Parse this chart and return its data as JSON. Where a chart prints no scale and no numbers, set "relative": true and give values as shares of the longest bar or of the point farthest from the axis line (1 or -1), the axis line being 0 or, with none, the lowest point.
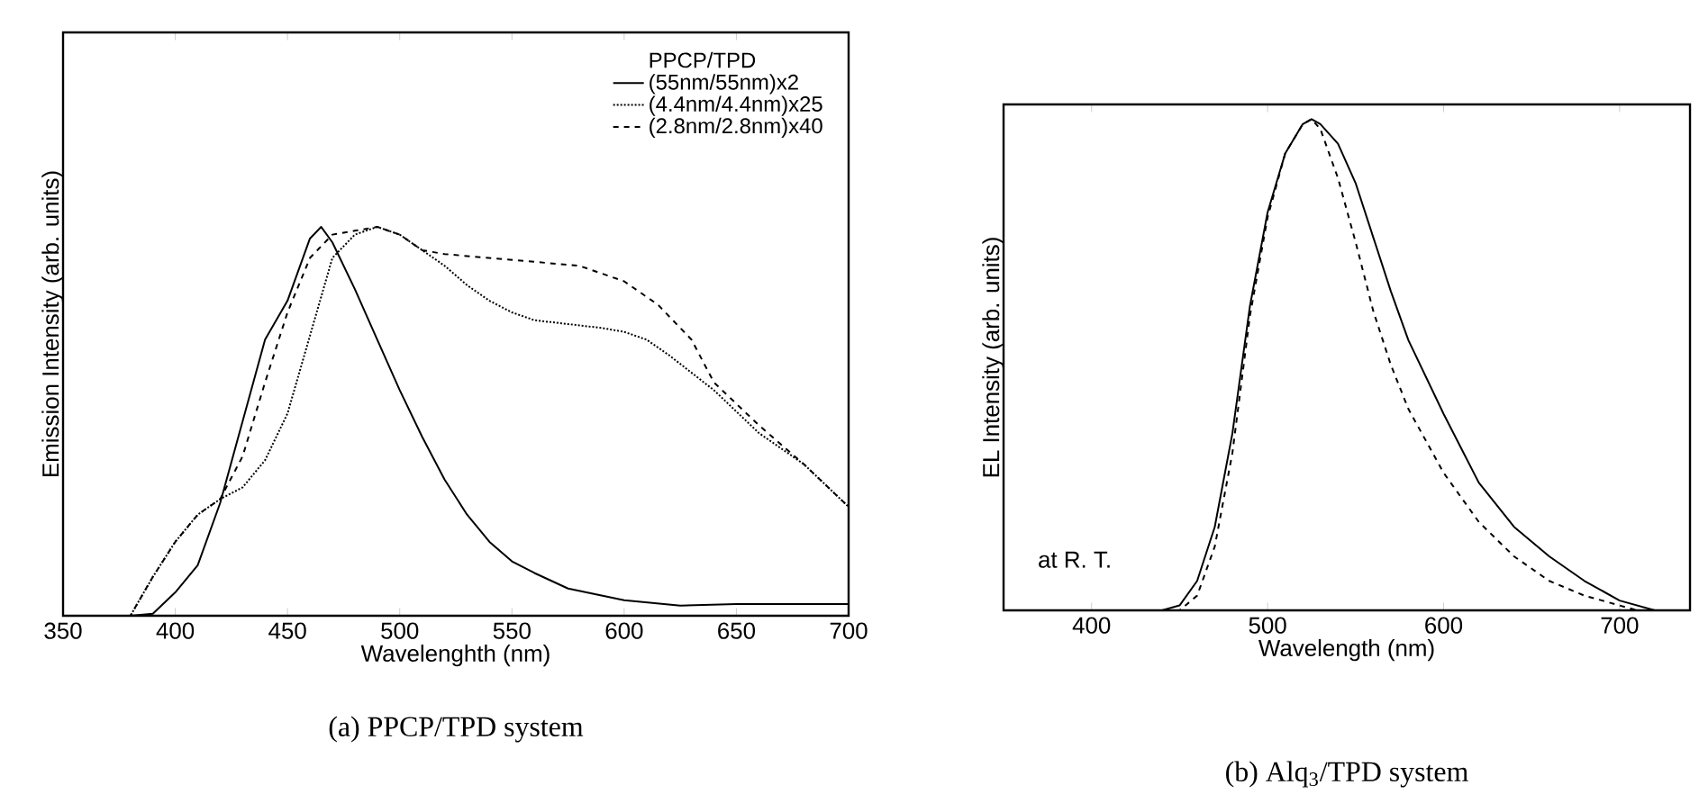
{
  "chart_data": [
    {
      "type": "line",
      "title": "(a) PPCP/TPD system",
      "xlabel": "Wavelenghth (nm)",
      "ylabel": "Emission Intensity (arb. units)",
      "relative": true,
      "xlim": [
        350,
        700
      ],
      "xticks": [
        350,
        400,
        450,
        500,
        550,
        600,
        650,
        700
      ],
      "tick_labels": "x",
      "legend": "top right",
      "legend_title": "PPCP/TPD",
      "series": [
        {
          "name": "(55nm/55nm)x2",
          "color": "#000000",
          "line_style": "solid",
          "x": [
            350,
            380,
            390,
            400,
            410,
            420,
            430,
            440,
            450,
            460,
            465,
            470,
            480,
            490,
            500,
            510,
            520,
            530,
            540,
            550,
            560,
            575,
            600,
            625,
            650,
            700
          ],
          "values": [
            0,
            0,
            0.005,
            0.06,
            0.13,
            0.29,
            0.5,
            0.71,
            0.81,
            0.97,
            1.0,
            0.96,
            0.84,
            0.71,
            0.58,
            0.46,
            0.35,
            0.26,
            0.19,
            0.14,
            0.11,
            0.07,
            0.04,
            0.026,
            0.03,
            0.03
          ]
        },
        {
          "name": "(4.4nm/4.4nm)x25",
          "color": "#000000",
          "line_style": "dotted",
          "x": [
            350,
            380,
            390,
            400,
            410,
            420,
            430,
            440,
            450,
            460,
            470,
            480,
            490,
            500,
            510,
            520,
            530,
            540,
            550,
            560,
            575,
            590,
            600,
            610,
            620,
            640,
            660,
            680,
            700
          ],
          "values": [
            0,
            0,
            0.1,
            0.19,
            0.26,
            0.3,
            0.33,
            0.4,
            0.52,
            0.72,
            0.92,
            0.98,
            1.0,
            0.98,
            0.94,
            0.9,
            0.85,
            0.81,
            0.78,
            0.76,
            0.75,
            0.74,
            0.73,
            0.71,
            0.67,
            0.58,
            0.47,
            0.39,
            0.28
          ]
        },
        {
          "name": "(2.8nm/2.8nm)x40",
          "color": "#000000",
          "line_style": "dashed",
          "x": [
            350,
            380,
            390,
            400,
            410,
            420,
            430,
            440,
            450,
            460,
            470,
            480,
            490,
            500,
            510,
            520,
            540,
            560,
            580,
            600,
            615,
            630,
            640,
            660,
            680,
            700
          ],
          "values": [
            0,
            0,
            0.1,
            0.19,
            0.26,
            0.3,
            0.41,
            0.6,
            0.78,
            0.92,
            0.98,
            0.99,
            1.0,
            0.98,
            0.94,
            0.93,
            0.92,
            0.91,
            0.9,
            0.86,
            0.8,
            0.71,
            0.6,
            0.49,
            0.39,
            0.28
          ]
        }
      ]
    },
    {
      "type": "line",
      "title": "(b) Alq$_{3}$/TPD system",
      "xlabel": "Wavelength (nm)",
      "ylabel": "EL Intensity (arb. units)",
      "relative": true,
      "xlim": [
        350,
        740
      ],
      "xticks": [
        400,
        500,
        600,
        700
      ],
      "tick_labels": "x",
      "annotations": [
        "at R. T."
      ],
      "series": [
        {
          "color": "#000000",
          "line_style": "solid",
          "x": [
            350,
            440,
            450,
            460,
            470,
            480,
            490,
            500,
            510,
            520,
            525,
            530,
            540,
            550,
            560,
            570,
            580,
            600,
            620,
            640,
            660,
            680,
            700,
            720,
            740
          ],
          "values": [
            0,
            0,
            0.01,
            0.06,
            0.17,
            0.36,
            0.62,
            0.81,
            0.93,
            0.99,
            1.0,
            0.99,
            0.95,
            0.87,
            0.76,
            0.65,
            0.55,
            0.4,
            0.26,
            0.17,
            0.11,
            0.06,
            0.02,
            0,
            0
          ]
        },
        {
          "color": "#000000",
          "line_style": "dashed",
          "x": [
            350,
            450,
            460,
            470,
            480,
            490,
            500,
            510,
            520,
            525,
            530,
            540,
            550,
            560,
            570,
            580,
            600,
            620,
            640,
            660,
            680,
            700,
            710
          ],
          "values": [
            0,
            0,
            0.03,
            0.13,
            0.32,
            0.6,
            0.8,
            0.93,
            0.99,
            1.0,
            0.98,
            0.88,
            0.75,
            0.61,
            0.5,
            0.41,
            0.28,
            0.18,
            0.11,
            0.06,
            0.03,
            0.01,
            0
          ]
        }
      ]
    }
  ]
}
